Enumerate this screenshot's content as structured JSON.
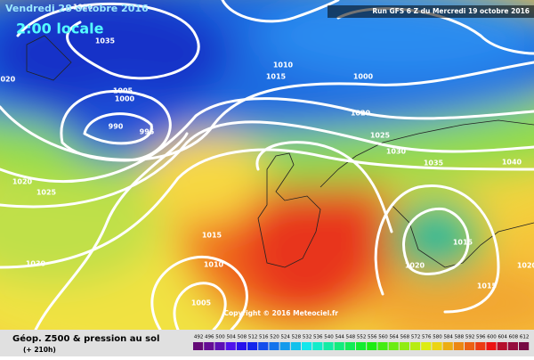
{
  "header": {
    "date": "Vendredi 28 octobre 2016",
    "time": "2:00 locale",
    "run": "Run GFS 6 Z du Mercredi 19 octobre 2016"
  },
  "pressure_labels": [
    "1020",
    "1035",
    "1020",
    "1010",
    "1015",
    "1000",
    "1005",
    "1000",
    "990",
    "995",
    "1020",
    "1025",
    "1030",
    "1035",
    "1040",
    "1020",
    "1025",
    "1015",
    "1030",
    "1010",
    "1015",
    "1020",
    "1005",
    "1015",
    "1020"
  ],
  "footer": {
    "copyright": "Copyright © 2016 Meteociel.fr",
    "legend_title": "Géop. Z500 & pression au sol",
    "lead_time": "(+ 210h)",
    "scale_labels": [
      "492",
      "496",
      "500",
      "504",
      "508",
      "512",
      "516",
      "520",
      "524",
      "528",
      "532",
      "536",
      "540",
      "544",
      "548",
      "552",
      "556",
      "560",
      "564",
      "568",
      "572",
      "576",
      "580",
      "584",
      "588",
      "592",
      "596",
      "600",
      "604",
      "608",
      "612"
    ]
  }
}
